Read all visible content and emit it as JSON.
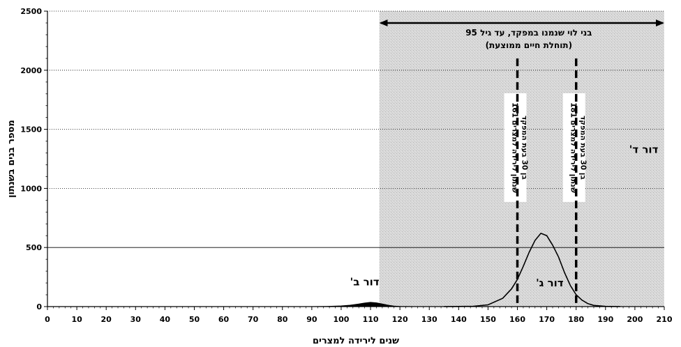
{
  "chart_data": {
    "type": "area",
    "xlabel": "שנים לירידה למצרים",
    "ylabel": "מספר בנים בשנתון",
    "xlim": [
      0,
      210
    ],
    "ylim": [
      0,
      2500
    ],
    "x_ticks": [
      0,
      10,
      20,
      30,
      40,
      50,
      60,
      70,
      80,
      90,
      100,
      110,
      120,
      130,
      140,
      150,
      160,
      170,
      180,
      190,
      200,
      210
    ],
    "y_ticks": [
      0,
      500,
      1000,
      1500,
      2000,
      2500
    ],
    "grid": "horizontal",
    "series": [
      {
        "x": [
          85,
          90,
          95,
          100,
          103,
          106,
          108,
          110,
          112,
          114,
          116,
          118,
          120,
          125,
          130
        ],
        "values": [
          0,
          0,
          2,
          6,
          12,
          22,
          30,
          36,
          32,
          22,
          12,
          5,
          2,
          0,
          0
        ]
      },
      {
        "x": [
          135,
          140,
          145,
          150,
          155,
          158,
          160,
          162,
          164,
          166,
          168,
          170,
          172,
          174,
          176,
          178,
          180,
          182,
          184,
          186,
          190,
          195
        ],
        "values": [
          0,
          1,
          3,
          15,
          70,
          150,
          230,
          340,
          460,
          560,
          620,
          600,
          520,
          420,
          290,
          180,
          100,
          55,
          25,
          10,
          2,
          0
        ]
      }
    ],
    "shaded_region": {
      "x_start": 113,
      "x_end": 210
    },
    "range_arrow": {
      "x_start": 113,
      "x_end": 210,
      "y": 2400,
      "label_line1": "בני לוי שנמנו במפקד, עד גיל 95",
      "label_line2": "(תוחלת חיים ממוצעת)"
    },
    "vertical_markers": [
      {
        "x": 160,
        "y_top": 2100,
        "label_line1": "שנתון לירידה למצרים 161",
        "label_line2": "בן 30 בעת המפקד"
      },
      {
        "x": 180,
        "y_top": 2100,
        "label_line1": "שנתון לירידה למצרים 181",
        "label_line2": "בן 30 בעת המפקד"
      }
    ],
    "annotations": [
      {
        "text": "דור ב'",
        "x": 108,
        "y": 180
      },
      {
        "text": "דור ג'",
        "x": 171,
        "y": 170
      },
      {
        "text": "דור ד'",
        "x": 203,
        "y": 1300
      }
    ]
  }
}
